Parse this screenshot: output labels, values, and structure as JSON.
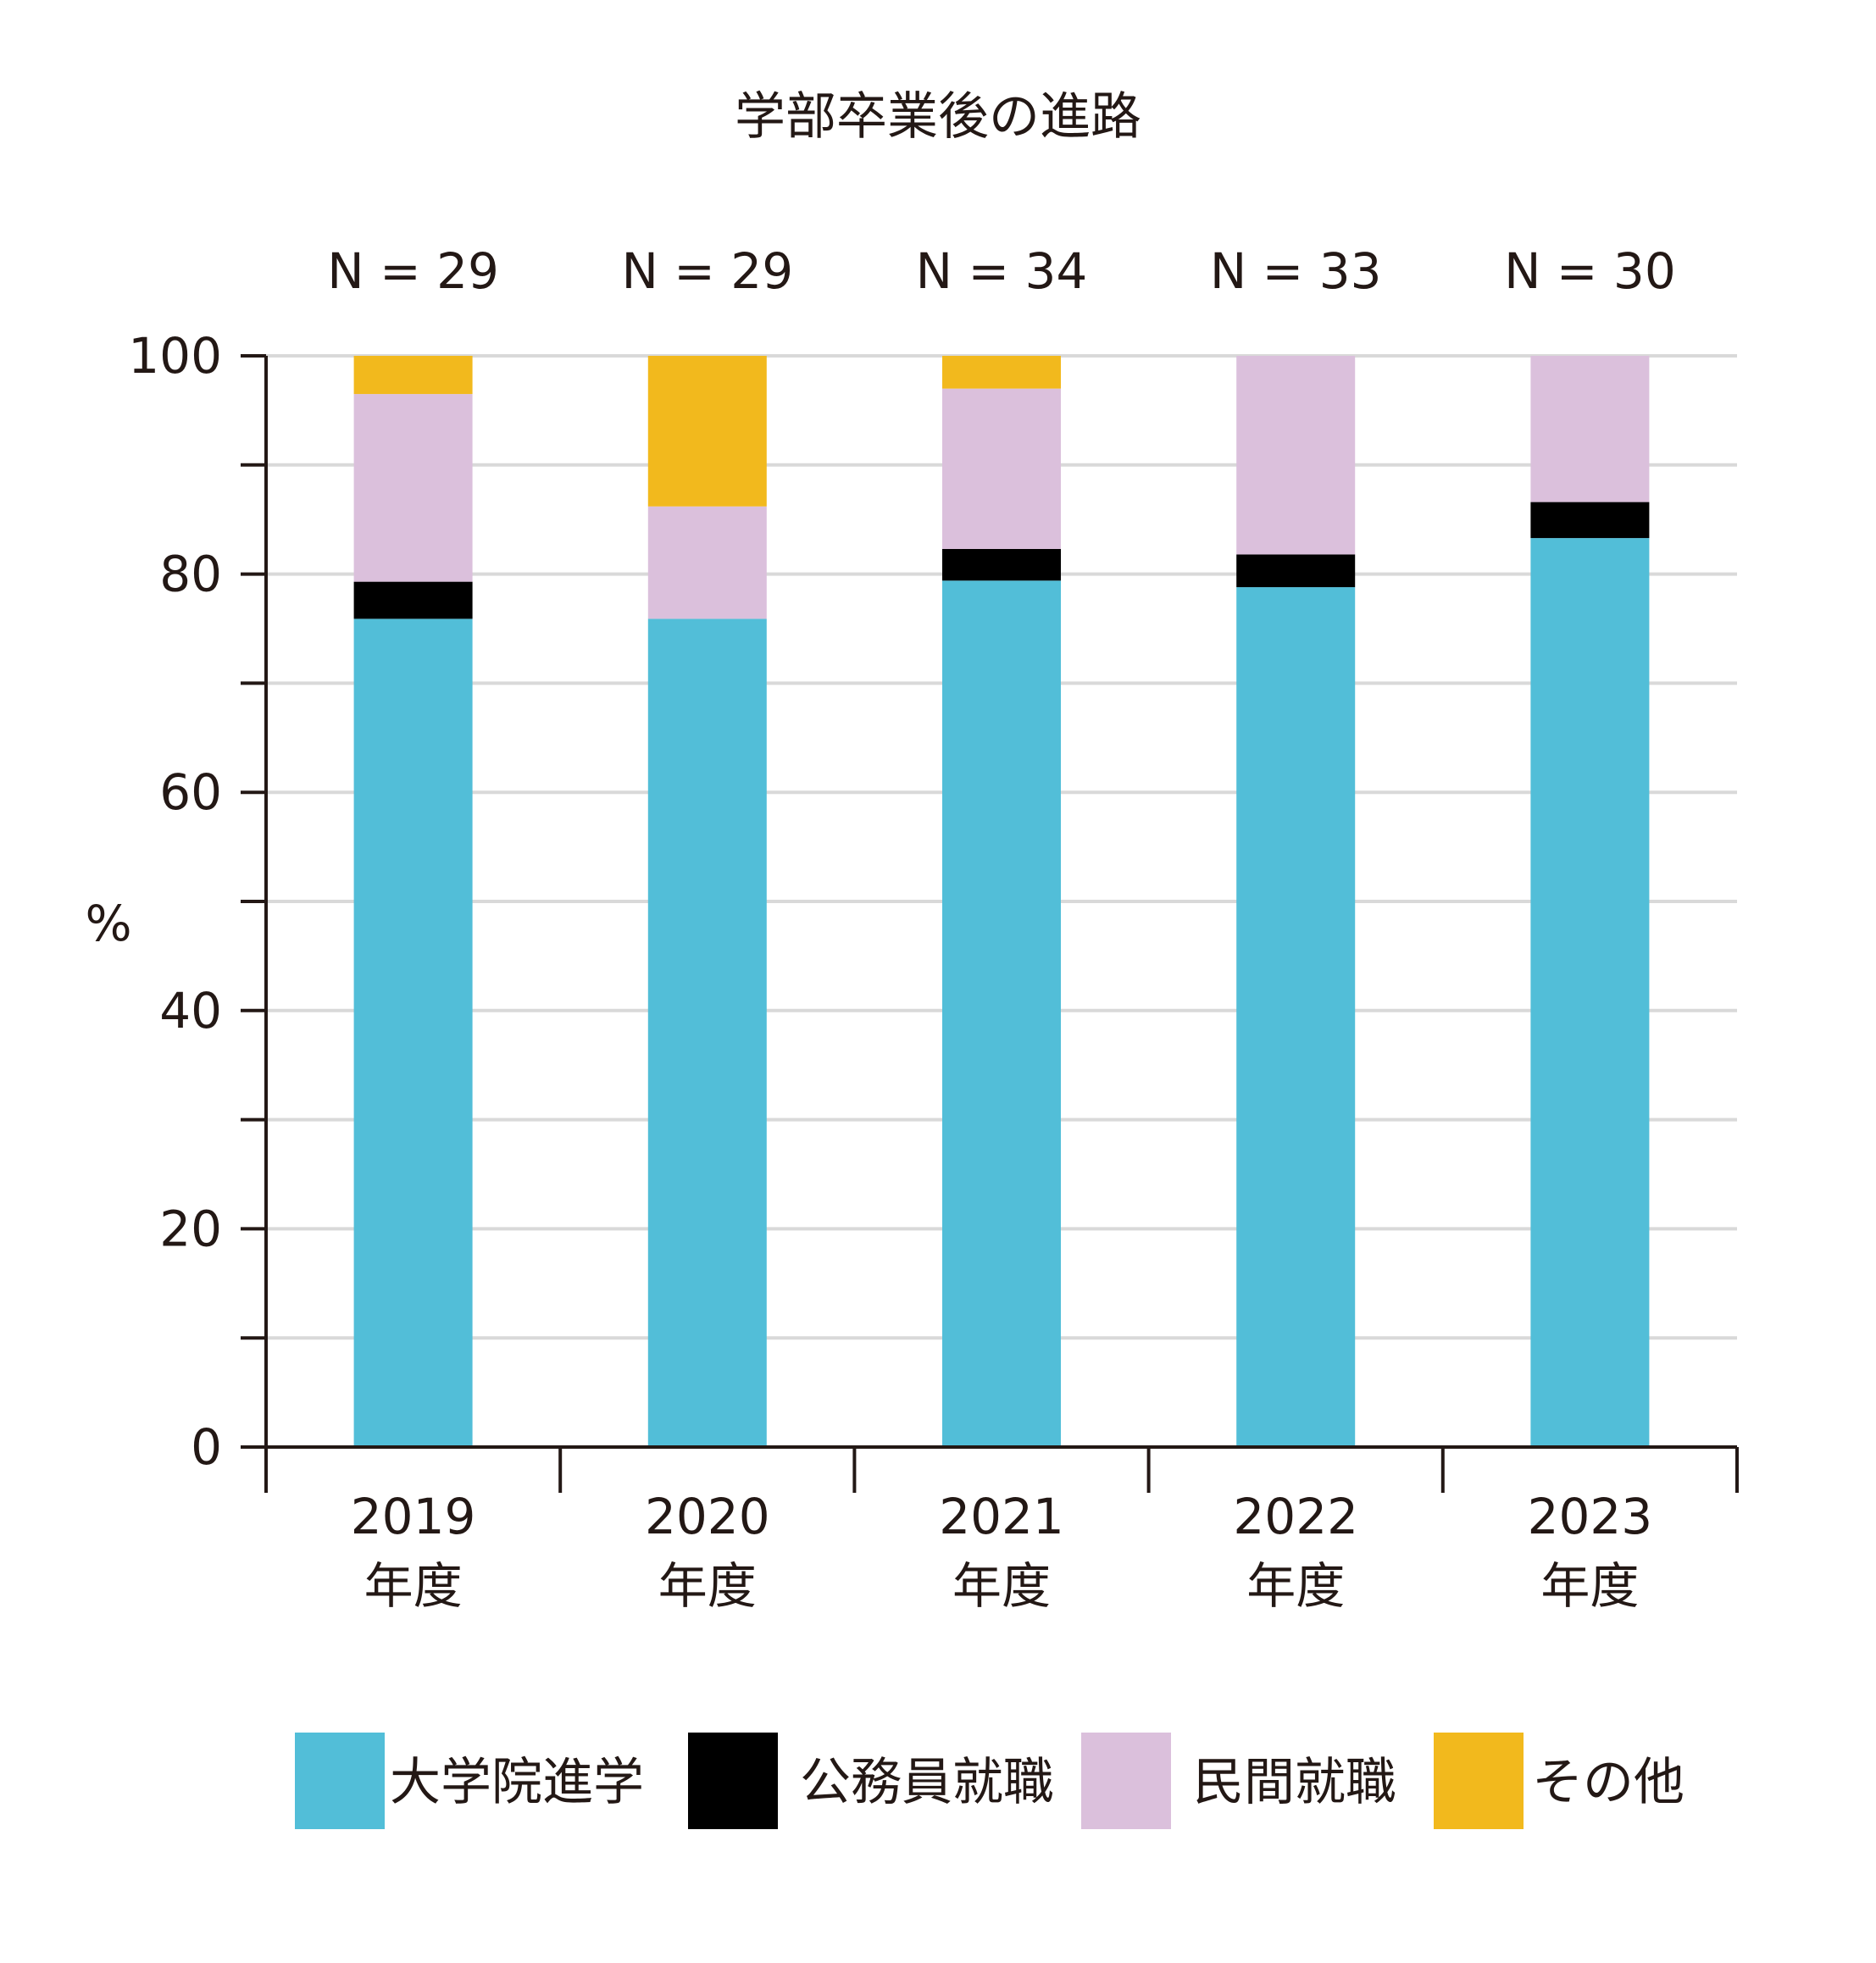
{
  "chart_data": {
    "type": "bar",
    "stacked": true,
    "title": "学部卒業後の進路",
    "ylabel": "%",
    "xlabel": "",
    "ylim": [
      0,
      100
    ],
    "yticks": [
      "0",
      "20",
      "40",
      "60",
      "80",
      "100"
    ],
    "grid": true,
    "legend_position": "bottom",
    "categories": [
      "2019",
      "2020",
      "2021",
      "2022",
      "2023"
    ],
    "category_suffix": "年度",
    "n_labels": [
      "N = 29",
      "N = 29",
      "N = 34",
      "N = 33",
      "N = 30"
    ],
    "series": [
      {
        "name": "大学院進学",
        "color": "#52bed8",
        "values": [
          75.9,
          75.9,
          79.4,
          78.8,
          83.3
        ]
      },
      {
        "name": "公務員就職",
        "color": "#000000",
        "values": [
          3.4,
          0.0,
          2.9,
          3.0,
          3.3
        ]
      },
      {
        "name": "民間就職",
        "color": "#dbc0dc",
        "values": [
          17.2,
          10.3,
          14.7,
          18.2,
          13.4
        ]
      },
      {
        "name": "その他",
        "color": "#f2b91d",
        "values": [
          3.5,
          13.8,
          3.0,
          0.0,
          0.0
        ]
      }
    ]
  }
}
